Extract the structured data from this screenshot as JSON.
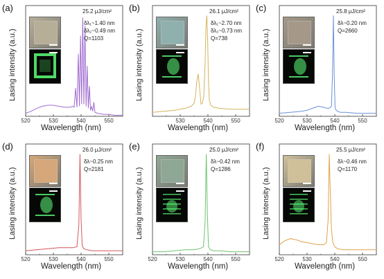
{
  "panels": [
    {
      "label": "(a)",
      "fluence": "25.2 μJ/cm²",
      "annotations": [
        "δλ₁~1.40 nm",
        "δλ₂~0.49 nm",
        "Q=1103"
      ],
      "line_color": "#a06cd0",
      "inset_color": "#b7ae98",
      "pattern": "ring"
    },
    {
      "label": "(b)",
      "fluence": "26.1 μJ/cm²",
      "annotations": [
        "δλ₁~2.70 nm",
        "δλ₂~0.73 nm",
        "Q=738"
      ],
      "line_color": "#d4b35a",
      "inset_color": "#8fb0ae",
      "pattern": "cluster"
    },
    {
      "label": "(c)",
      "fluence": "25.8 μJ/cm²",
      "annotations": [
        "δλ~0.20 nm",
        "Q=2660"
      ],
      "line_color": "#6a90d8",
      "inset_color": "#a59888",
      "pattern": "cluster"
    },
    {
      "label": "(d)",
      "fluence": "26.0 μJ/cm²",
      "annotations": [
        "δλ~0.25 nm",
        "Q=2181"
      ],
      "line_color": "#d45555",
      "inset_color": "#d6a77a",
      "pattern": "cluster"
    },
    {
      "label": "(e)",
      "fluence": "25.0 μJ/cm²",
      "annotations": [
        "δλ~0.42 nm",
        "Q=1286"
      ],
      "line_color": "#6cc36c",
      "inset_color": "#8fa795",
      "pattern": "lines"
    },
    {
      "label": "(f)",
      "fluence": "25.5 μJ/cm²",
      "annotations": [
        "δλ~0.46 nm",
        "Q=1170"
      ],
      "line_color": "#e0a24a",
      "inset_color": "#cfc09a",
      "pattern": "lines"
    }
  ],
  "chart_data": [
    {
      "type": "line",
      "xlabel": "Wavelength (nm)",
      "ylabel": "Lasing intensity (a.u.)",
      "xlim": [
        520,
        555
      ],
      "xticks": [
        520,
        530,
        540,
        550
      ],
      "ylim": [
        0,
        1.1
      ],
      "series": [
        {
          "x": [
            520,
            522,
            524,
            526,
            528,
            530,
            532,
            534,
            535,
            536,
            537,
            537.5,
            538,
            538.5,
            539,
            539.4,
            539.8,
            540.2,
            540.6,
            541,
            541.4,
            541.8,
            542.2,
            542.6,
            543,
            543.4,
            543.8,
            544.2,
            544.6,
            545,
            546,
            548,
            550,
            552,
            555
          ],
          "y": [
            0.03,
            0.05,
            0.08,
            0.1,
            0.11,
            0.11,
            0.1,
            0.09,
            0.09,
            0.09,
            0.1,
            0.09,
            0.28,
            0.09,
            0.62,
            0.1,
            0.8,
            0.12,
            0.98,
            0.12,
            0.9,
            0.1,
            0.5,
            0.08,
            0.3,
            0.06,
            0.1,
            0.05,
            0.14,
            0.04,
            0.03,
            0.02,
            0.02,
            0.01,
            0.01
          ]
        }
      ]
    },
    {
      "type": "line",
      "xlabel": "Wavelength (nm)",
      "ylabel": "Lasing intensity (a.u.)",
      "xlim": [
        520,
        555
      ],
      "xticks": [
        530,
        540,
        550
      ],
      "ylim": [
        0,
        1.1
      ],
      "series": [
        {
          "x": [
            520,
            524,
            528,
            530,
            532,
            534,
            535,
            535.5,
            536,
            536.5,
            537,
            537.5,
            538,
            538.5,
            539,
            539.3,
            539.6,
            539.9,
            540.2,
            540.5,
            541,
            542,
            544,
            548,
            552,
            555
          ],
          "y": [
            0.04,
            0.05,
            0.06,
            0.07,
            0.08,
            0.1,
            0.13,
            0.2,
            0.35,
            0.42,
            0.28,
            0.12,
            0.13,
            0.2,
            0.55,
            0.9,
            1.0,
            0.75,
            0.35,
            0.16,
            0.11,
            0.09,
            0.08,
            0.07,
            0.07,
            0.07
          ]
        }
      ]
    },
    {
      "type": "line",
      "xlabel": "Wavelength (nm)",
      "ylabel": "Lasing intensity (a.u.)",
      "xlim": [
        520,
        555
      ],
      "xticks": [
        520,
        530,
        540,
        550
      ],
      "ylim": [
        0,
        1.1
      ],
      "series": [
        {
          "x": [
            520,
            524,
            528,
            530,
            532,
            534,
            536,
            537,
            538,
            538.8,
            539.2,
            539.5,
            539.8,
            540.1,
            540.5,
            541,
            542,
            544,
            548,
            552,
            555
          ],
          "y": [
            0.03,
            0.04,
            0.05,
            0.06,
            0.08,
            0.1,
            0.09,
            0.08,
            0.08,
            0.1,
            0.45,
            1.0,
            0.4,
            0.09,
            0.06,
            0.05,
            0.04,
            0.04,
            0.03,
            0.03,
            0.03
          ]
        }
      ]
    },
    {
      "type": "line",
      "xlabel": "Wavelength (nm)",
      "ylabel": "Lasing intensity (a.u.)",
      "xlim": [
        520,
        555
      ],
      "xticks": [
        520,
        530,
        540,
        550
      ],
      "ylim": [
        0,
        1.1
      ],
      "series": [
        {
          "x": [
            520,
            524,
            528,
            532,
            535,
            537,
            538.5,
            539.2,
            539.6,
            540,
            540.4,
            541,
            542,
            544,
            548,
            552,
            555
          ],
          "y": [
            0.04,
            0.05,
            0.06,
            0.07,
            0.07,
            0.07,
            0.08,
            0.3,
            1.0,
            0.35,
            0.09,
            0.06,
            0.05,
            0.04,
            0.04,
            0.04,
            0.04
          ]
        }
      ]
    },
    {
      "type": "line",
      "xlabel": "Wavelength (nm)",
      "ylabel": "Lasing intensity (a.u.)",
      "xlim": [
        520,
        555
      ],
      "xticks": [
        520,
        530,
        540,
        550
      ],
      "ylim": [
        0,
        1.1
      ],
      "series": [
        {
          "x": [
            520,
            524,
            528,
            532,
            535,
            537,
            538.4,
            539,
            539.4,
            539.8,
            540.2,
            540.8,
            542,
            544,
            548,
            552,
            555
          ],
          "y": [
            0.03,
            0.03,
            0.04,
            0.05,
            0.05,
            0.06,
            0.08,
            0.35,
            1.0,
            0.4,
            0.08,
            0.05,
            0.04,
            0.04,
            0.03,
            0.03,
            0.03
          ]
        }
      ]
    },
    {
      "type": "line",
      "xlabel": "Wavelength (nm)",
      "ylabel": "Lasing intensity (a.u.)",
      "xlim": [
        520,
        555
      ],
      "xticks": [
        520,
        530,
        540,
        550
      ],
      "ylim": [
        0,
        1.1
      ],
      "series": [
        {
          "x": [
            520,
            522,
            524,
            526,
            528,
            530,
            532,
            534,
            536,
            537,
            537.6,
            538,
            538.4,
            538.8,
            539.3,
            540,
            541,
            543,
            546,
            550,
            555
          ],
          "y": [
            0.1,
            0.14,
            0.16,
            0.15,
            0.13,
            0.12,
            0.11,
            0.1,
            0.1,
            0.12,
            0.35,
            1.0,
            0.6,
            0.25,
            0.12,
            0.08,
            0.06,
            0.05,
            0.05,
            0.05,
            0.05
          ]
        }
      ]
    }
  ]
}
